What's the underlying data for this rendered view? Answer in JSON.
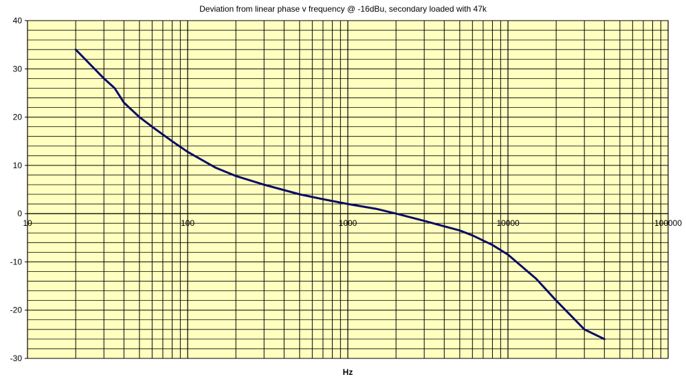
{
  "chart_data": {
    "type": "line",
    "title": "Deviation from linear phase v frequency @ -16dBu, secondary loaded with 47k",
    "xlabel": "Hz",
    "ylabel": "",
    "x_scale": "log",
    "xlim": [
      10,
      100000
    ],
    "ylim": [
      -30,
      40
    ],
    "x_tick_labels": [
      "10",
      "100",
      "1000",
      "10000",
      "100000"
    ],
    "y_tick_labels": [
      "40",
      "30",
      "20",
      "10",
      "0",
      "-10",
      "-20",
      "-30"
    ],
    "grid": true,
    "plot_background": "#ffffc0",
    "line_color": "#0a0a64",
    "series": [
      {
        "x": [
          20,
          30,
          35,
          40,
          50,
          60,
          80,
          100,
          150,
          200,
          300,
          500,
          700,
          1000,
          1500,
          2000,
          3000,
          5000,
          6000,
          8000,
          10000,
          15000,
          20000,
          30000,
          40000
        ],
        "y": [
          34,
          28,
          26,
          23,
          20,
          18,
          15,
          12.8,
          9.5,
          7.8,
          6,
          4,
          3,
          2,
          1,
          0,
          -1.5,
          -3.5,
          -4.5,
          -6.5,
          -8.5,
          -13.5,
          -18,
          -24,
          -26
        ]
      }
    ]
  }
}
